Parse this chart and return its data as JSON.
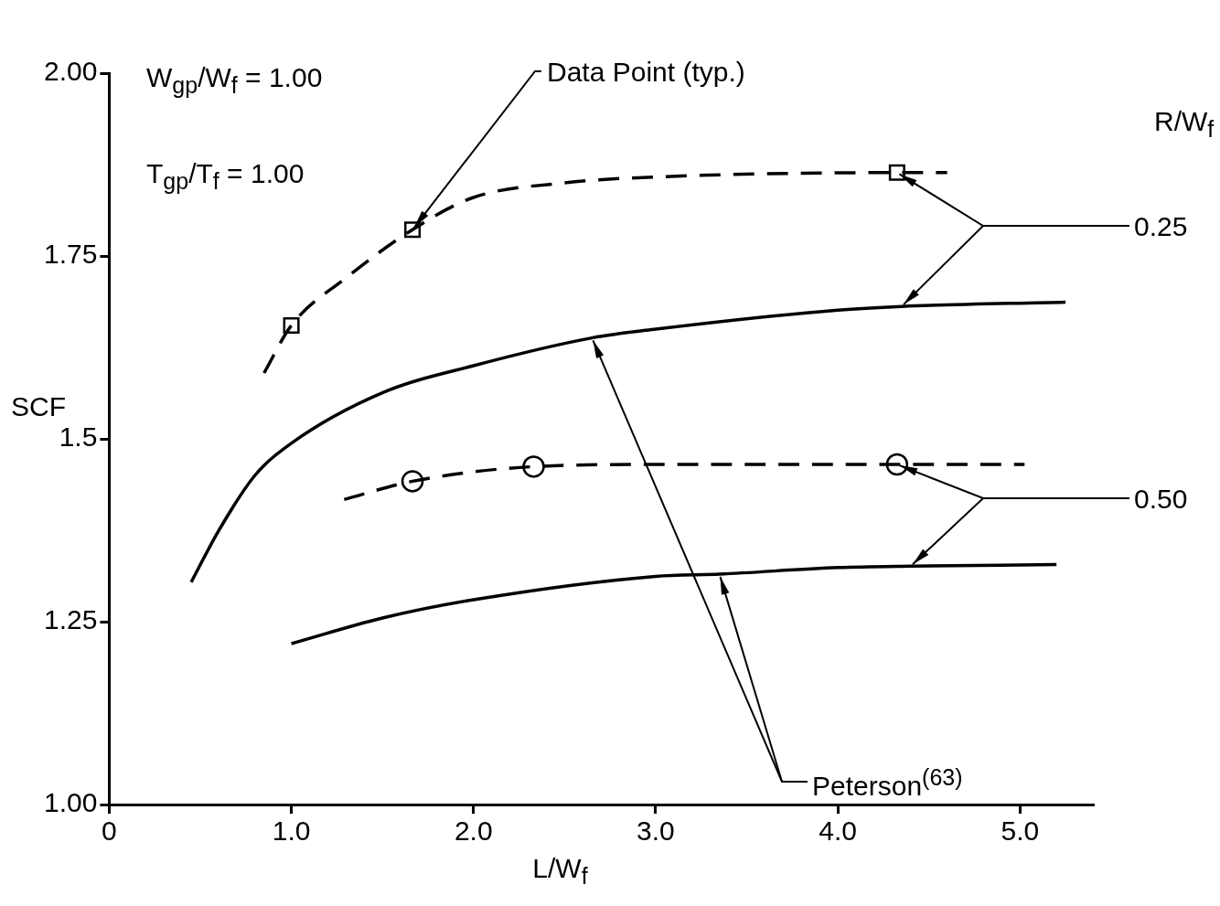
{
  "chart_data": {
    "type": "line",
    "ylabel": "SCF",
    "xlabel": "L/W$_{f}$",
    "xlim": [
      0,
      5.4
    ],
    "xticks": [
      {
        "value": 0,
        "label": "0"
      },
      {
        "value": 1,
        "label": "1.0"
      },
      {
        "value": 2,
        "label": "2.0"
      },
      {
        "value": 3,
        "label": "3.0"
      },
      {
        "value": 4,
        "label": "4.0"
      },
      {
        "value": 5,
        "label": "5.0"
      }
    ],
    "ylim": [
      1,
      2
    ],
    "yticks": [
      {
        "value": 1,
        "label": "1.00"
      },
      1.25,
      1.5,
      1.75,
      {
        "value": 2,
        "label": "2.00"
      }
    ],
    "grid": false,
    "legend": false,
    "series": [
      {
        "type": "line",
        "line_style": "dashed",
        "marker": "none",
        "color": "#000000",
        "x": [
          0.85,
          1.0,
          1.3,
          1.665,
          2.0,
          2.5,
          3.0,
          4.325,
          4.6
        ],
        "values": [
          1.59,
          1.655,
          1.72,
          1.786,
          1.83,
          1.85,
          1.858,
          1.864,
          1.864
        ]
      },
      {
        "type": "scatter",
        "marker": "square",
        "color": "#000000",
        "x": [
          1.0,
          1.665,
          4.325
        ],
        "values": [
          1.655,
          1.786,
          1.864
        ]
      },
      {
        "type": "line",
        "line_style": "solid",
        "marker": "none",
        "color": "#000000",
        "x": [
          0.45,
          0.6,
          0.8,
          1.0,
          1.5,
          2.0,
          2.65,
          3.0,
          4.0,
          4.35,
          5.25
        ],
        "values": [
          1.304,
          1.374,
          1.45,
          1.494,
          1.563,
          1.6,
          1.638,
          1.65,
          1.676,
          1.681,
          1.687
        ]
      },
      {
        "type": "line",
        "line_style": "dashed",
        "marker": "none",
        "color": "#000000",
        "x": [
          1.29,
          1.665,
          2.33,
          3.0,
          4.325,
          5.025
        ],
        "values": [
          1.417,
          1.442,
          1.462,
          1.465,
          1.465,
          1.465
        ]
      },
      {
        "type": "scatter",
        "marker": "circle",
        "color": "#000000",
        "x": [
          1.665,
          2.33,
          4.325
        ],
        "values": [
          1.442,
          1.462,
          1.465
        ]
      },
      {
        "type": "line",
        "line_style": "solid",
        "marker": "none",
        "color": "#000000",
        "x": [
          1.0,
          1.5,
          2.0,
          3.0,
          3.35,
          4.0,
          4.4,
          5.2
        ],
        "values": [
          1.22,
          1.255,
          1.28,
          1.312,
          1.315,
          1.324,
          1.326,
          1.328
        ]
      }
    ],
    "annotations": [
      "W$_{gp}$/W$_{f}$ = 1.00",
      "T$_{gp}$/T$_{f}$ = 1.00",
      "R/W$_{f}$",
      {
        "text": "Data Point (typ.)",
        "x": 1.665,
        "y": 1.786
      },
      {
        "text": "0.25",
        "x": 4.325,
        "y": 1.864
      },
      {
        "text": "0.50",
        "x": 4.325,
        "y": 1.465
      },
      {
        "text": "Peterson$^{(63)}$",
        "x": 2.65,
        "y": 1.638
      }
    ]
  }
}
